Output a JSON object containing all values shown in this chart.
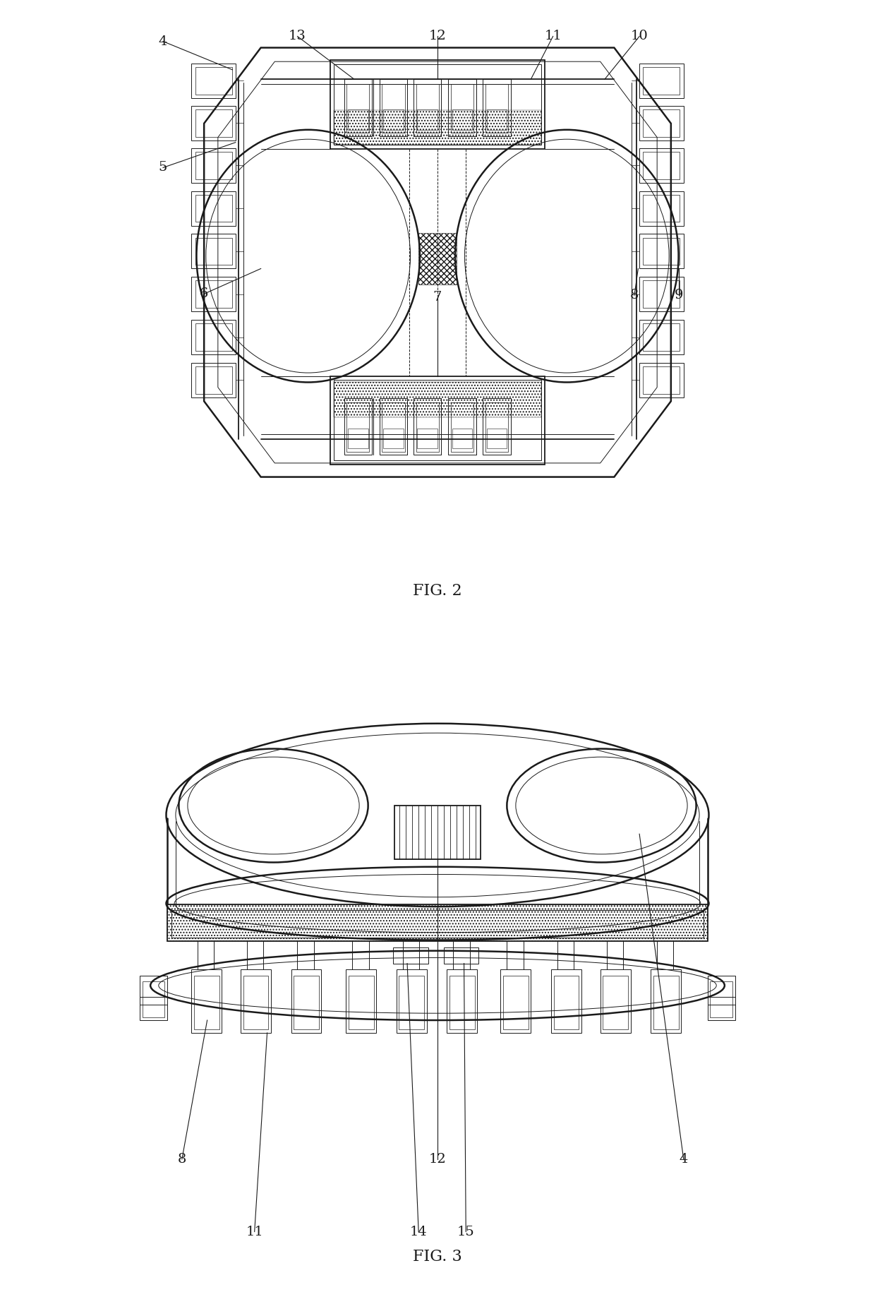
{
  "bg_color": "#ffffff",
  "line_color": "#1a1a1a",
  "fig2_caption": "FIG. 2",
  "fig3_caption": "FIG. 3",
  "fig2_labels": {
    "4": [
      0.065,
      0.95,
      0.175,
      0.905
    ],
    "5": [
      0.065,
      0.75,
      0.18,
      0.79
    ],
    "6": [
      0.13,
      0.55,
      0.22,
      0.59
    ],
    "7": [
      0.5,
      0.545,
      0.5,
      0.42
    ],
    "8": [
      0.812,
      0.548,
      0.818,
      0.59
    ],
    "9": [
      0.882,
      0.548,
      0.882,
      0.59
    ],
    "10": [
      0.82,
      0.958,
      0.765,
      0.89
    ],
    "11": [
      0.683,
      0.958,
      0.648,
      0.89
    ],
    "12": [
      0.5,
      0.958,
      0.5,
      0.89
    ],
    "13": [
      0.278,
      0.958,
      0.368,
      0.89
    ]
  },
  "fig3_labels": {
    "8": [
      0.095,
      0.195,
      0.135,
      0.415
    ],
    "12": [
      0.5,
      0.195,
      0.5,
      0.67
    ],
    "4": [
      0.89,
      0.195,
      0.82,
      0.71
    ],
    "11": [
      0.21,
      0.08,
      0.23,
      0.395
    ],
    "14": [
      0.47,
      0.08,
      0.452,
      0.505
    ],
    "15": [
      0.545,
      0.08,
      0.542,
      0.505
    ]
  },
  "lw_main": 1.3,
  "lw_thin": 0.7,
  "lw_thick": 1.8
}
